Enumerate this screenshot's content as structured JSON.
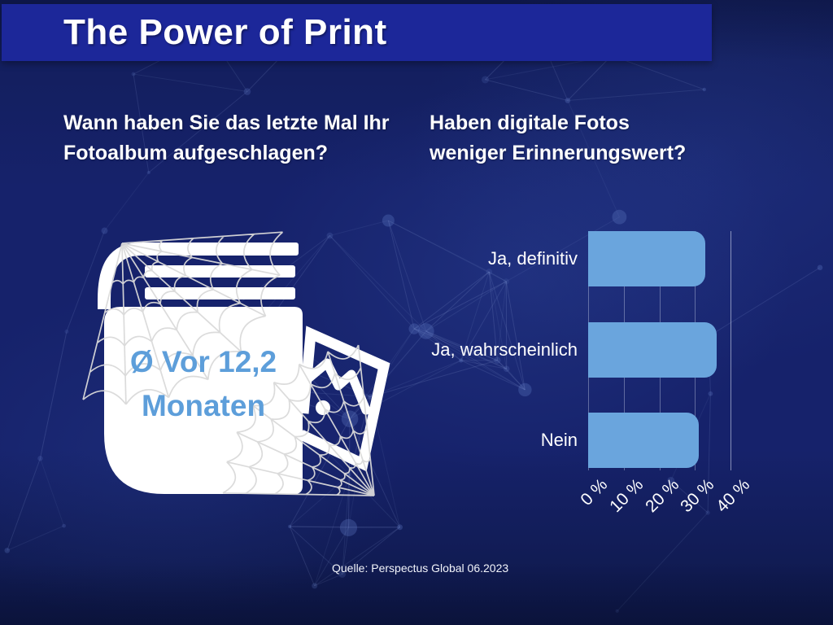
{
  "header": {
    "title": "The Power of Print"
  },
  "questions": {
    "left": "Wann haben Sie das letzte Mal Ihr\nFotoalbum aufgeschlagen?",
    "right": "Haben digitale Fotos\nweniger Erinnerungswert?"
  },
  "album": {
    "stat": "Ø Vor 12,2\nMonaten",
    "icons": [
      "photo-album-icon",
      "cobweb-icon",
      "photo-icon"
    ]
  },
  "chart_data": {
    "type": "bar",
    "orientation": "horizontal",
    "question": "Haben digitale Fotos weniger Erinnerungswert?",
    "categories": [
      "Ja, definitiv",
      "Ja, wahrscheinlich",
      "Nein"
    ],
    "values": [
      33,
      36,
      31
    ],
    "unit": "%",
    "xlim": [
      0,
      40
    ],
    "x_ticks": [
      "0 %",
      "10 %",
      "20 %",
      "30 %",
      "40 %"
    ],
    "grid": true,
    "legend": false,
    "bar_color": "#6AA5DD"
  },
  "source": "Quelle: Perspectus Global 06.2023",
  "colors": {
    "background": "#16226B",
    "header_bar": "#1C2799",
    "bar_fill": "#6AA5DD",
    "stat_text": "#5D9EDA",
    "text": "#FFFFFF",
    "cobweb": "#D9D9D9"
  }
}
